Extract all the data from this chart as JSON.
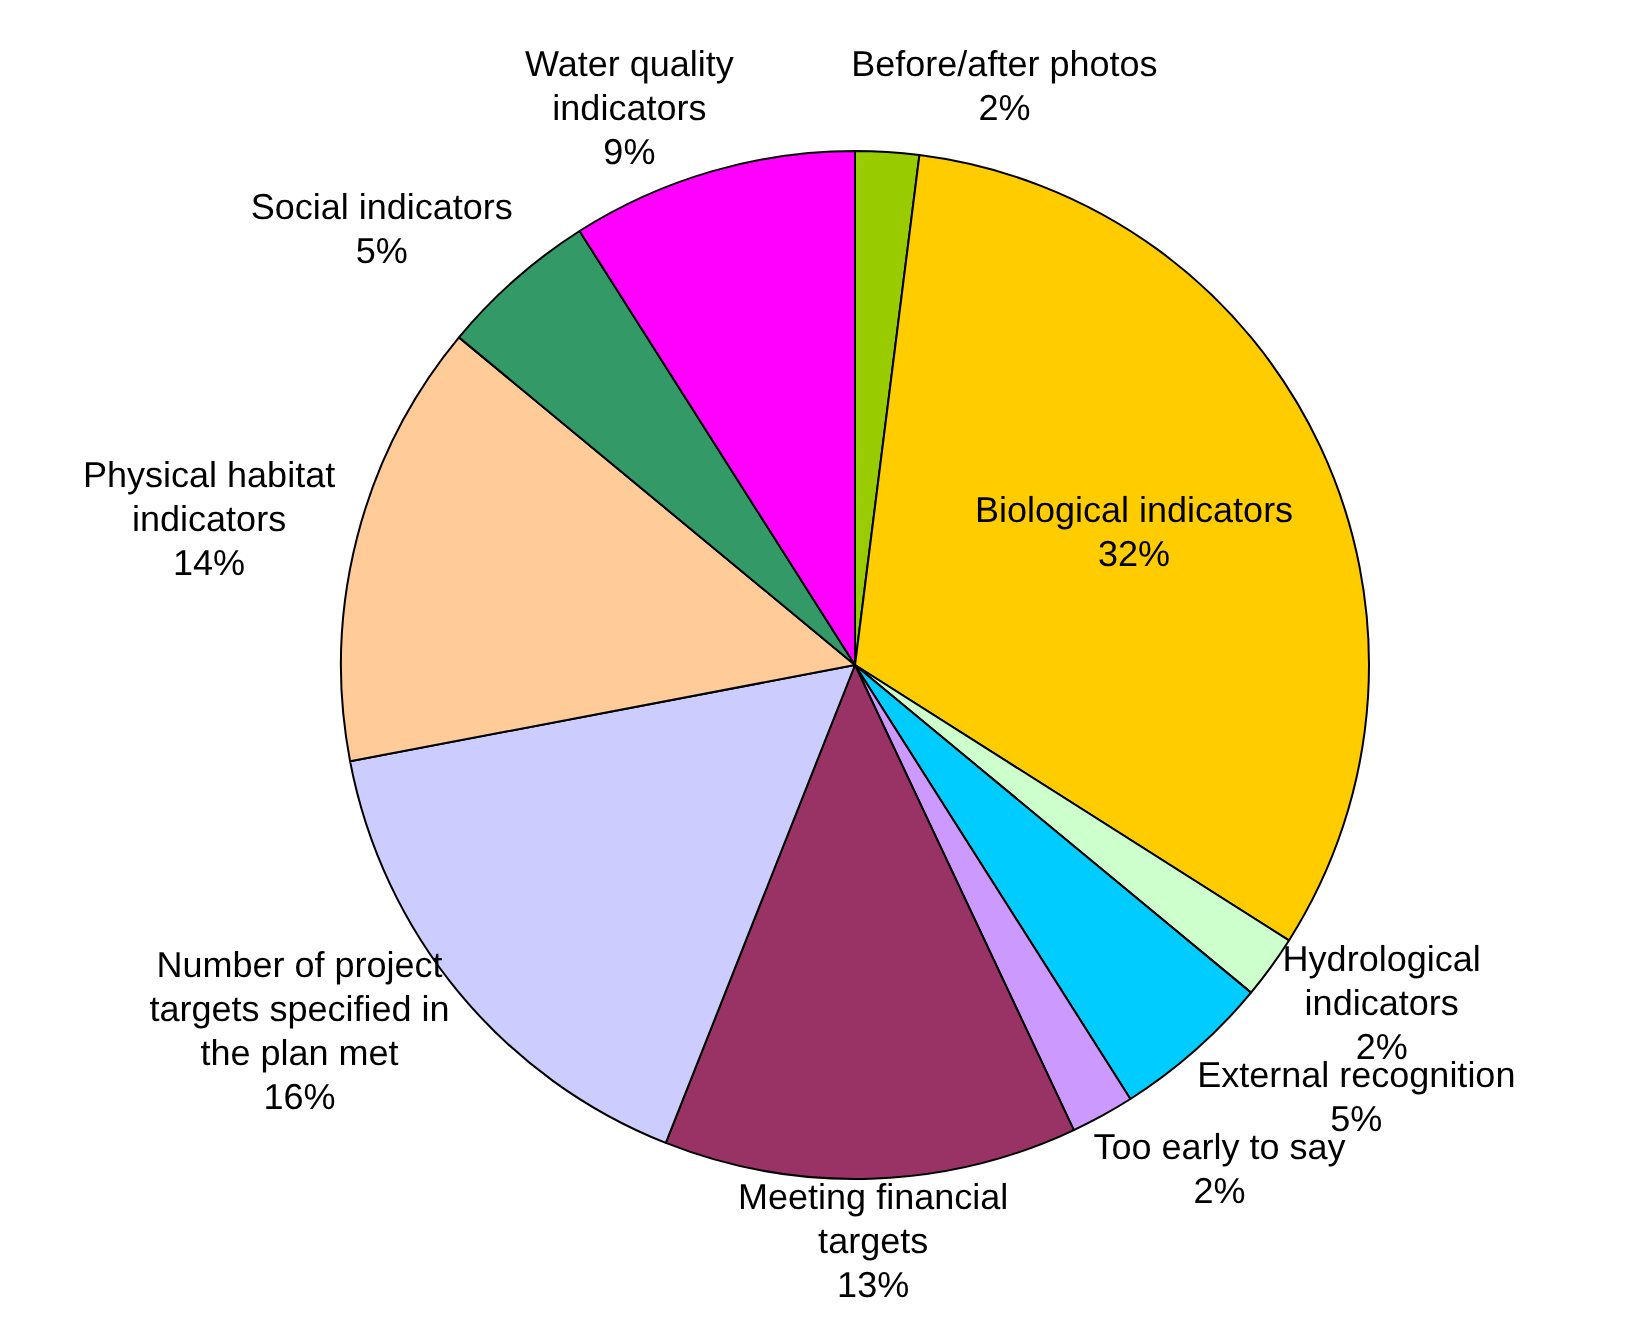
{
  "chart_data": {
    "type": "pie",
    "categories": [
      "Before/after photos",
      "Biological indicators",
      "Hydrological indicators",
      "External recognition",
      "Too early to say",
      "Meeting financial targets",
      "Number of project targets specified in the plan met",
      "Physical habitat indicators",
      "Social indicators",
      "Water quality indicators"
    ],
    "values": [
      2,
      32,
      2,
      5,
      2,
      13,
      16,
      14,
      5,
      9
    ],
    "value_labels": [
      "2%",
      "32%",
      "2%",
      "5%",
      "2%",
      "13%",
      "16%",
      "14%",
      "5%",
      "9%"
    ],
    "colors": [
      "#99cc00",
      "#ffcc00",
      "#ccffcc",
      "#00ccff",
      "#cc99ff",
      "#993366",
      "#ccccff",
      "#ffcc99",
      "#339966",
      "#ff00ff"
    ],
    "legend": false
  }
}
